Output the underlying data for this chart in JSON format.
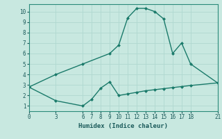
{
  "title": "",
  "xlabel": "Humidex (Indice chaleur)",
  "background_color": "#c8e8e0",
  "grid_color": "#b0d8d0",
  "line_color": "#1a7a6a",
  "xlim": [
    0,
    21
  ],
  "ylim": [
    0.5,
    10.7
  ],
  "xticks": [
    0,
    3,
    6,
    7,
    8,
    9,
    10,
    11,
    12,
    13,
    14,
    15,
    16,
    17,
    18,
    21
  ],
  "yticks": [
    1,
    2,
    3,
    4,
    5,
    6,
    7,
    8,
    9,
    10
  ],
  "line1_x": [
    0,
    3,
    6,
    9,
    10,
    11,
    12,
    13,
    14,
    15,
    16,
    17,
    18,
    21
  ],
  "line1_y": [
    2.8,
    4.0,
    5.0,
    6.0,
    6.8,
    9.4,
    10.3,
    10.3,
    10.0,
    9.3,
    6.0,
    7.0,
    5.0,
    3.2
  ],
  "line2_x": [
    0,
    3,
    6,
    7,
    8,
    9,
    10,
    11,
    12,
    13,
    14,
    15,
    16,
    17,
    18,
    21
  ],
  "line2_y": [
    2.8,
    1.5,
    1.0,
    1.65,
    2.7,
    3.3,
    2.0,
    2.15,
    2.3,
    2.45,
    2.55,
    2.65,
    2.75,
    2.85,
    2.95,
    3.2
  ]
}
